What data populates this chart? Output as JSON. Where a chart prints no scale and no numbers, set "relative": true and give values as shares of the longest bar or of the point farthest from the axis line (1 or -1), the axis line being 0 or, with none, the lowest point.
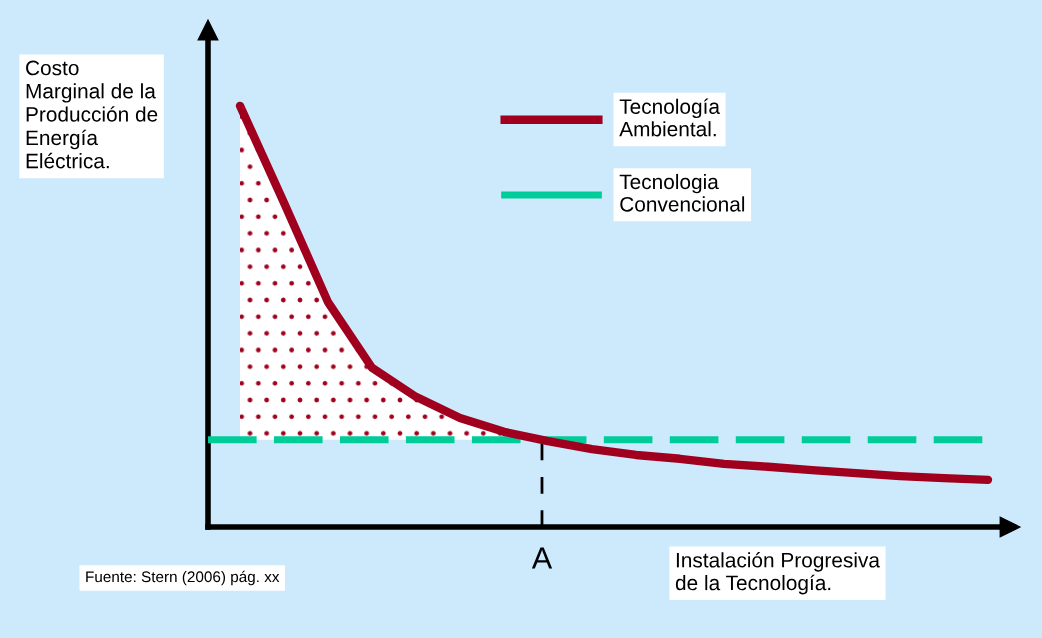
{
  "chart_data": {
    "type": "line",
    "relative": true,
    "ylabel": "Costo\nMarginal de la\nProducción de\nEnergía\nEléctrica.",
    "xlabel": "Instalación Progresiva\nde la Tecnología.",
    "annotations": [
      "Fuente: Stern (2006) pág. xx",
      "A"
    ],
    "categories": [
      null,
      null,
      null,
      null,
      null,
      null,
      null,
      null,
      null,
      null,
      null,
      null,
      null,
      null,
      null,
      null,
      null,
      null
    ],
    "series": [
      {
        "name": "Tecnología\nAmbiental.",
        "color": "#a0001e",
        "values": [
          1.0,
          0.77,
          0.534,
          0.378,
          0.309,
          0.259,
          0.226,
          0.204,
          0.185,
          0.171,
          0.162,
          0.15,
          0.143,
          0.135,
          0.128,
          0.121,
          0.116,
          0.112
        ]
      }
    ],
    "ref_lines": [
      {
        "axis": "y",
        "value": 0.207,
        "label": "Tecnologia\nConvencional",
        "color": "#00cc99",
        "line_style": "dashed"
      }
    ],
    "legend": "top",
    "grid": false,
    "marker": "none",
    "line_style": "solid"
  }
}
